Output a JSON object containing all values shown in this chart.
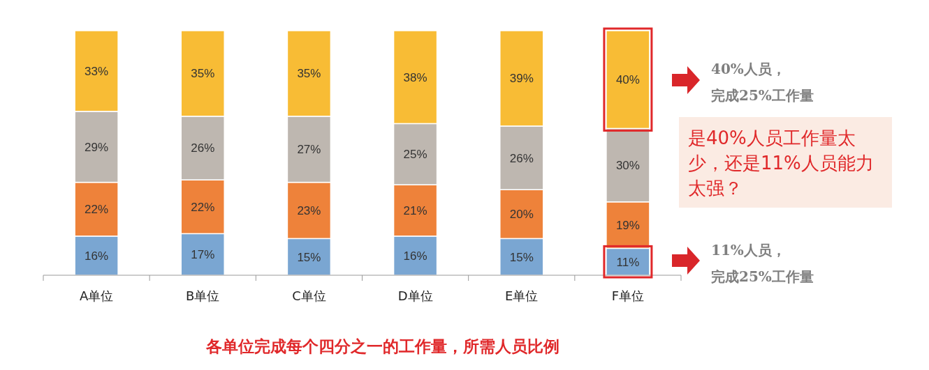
{
  "chart_data": {
    "type": "bar",
    "stacked": true,
    "title": "各单位完成每个四分之一的工作量，所需人员比例",
    "categories": [
      "A单位",
      "B单位",
      "C单位",
      "D单位",
      "E单位",
      "F单位"
    ],
    "series": [
      {
        "color": "#7aa6d2",
        "values": [
          16,
          17,
          15,
          16,
          15,
          11
        ],
        "value_labels": [
          "16%",
          "17%",
          "15%",
          "16%",
          "15%",
          "11%"
        ]
      },
      {
        "color": "#ee823a",
        "values": [
          22,
          22,
          23,
          21,
          20,
          19
        ],
        "value_labels": [
          "22%",
          "22%",
          "23%",
          "21%",
          "20%",
          "19%"
        ]
      },
      {
        "color": "#beb7b0",
        "values": [
          29,
          26,
          27,
          25,
          26,
          30
        ],
        "value_labels": [
          "29%",
          "26%",
          "27%",
          "25%",
          "26%",
          "30%"
        ]
      },
      {
        "color": "#f8bc35",
        "values": [
          33,
          35,
          35,
          38,
          39,
          40
        ],
        "value_labels": [
          "33%",
          "35%",
          "35%",
          "38%",
          "39%",
          "40%"
        ]
      }
    ],
    "annotations": [
      "40%人员，完成25%工作量",
      "是40%人员工作量太少，还是11%人员能力太强？",
      "11%人员，完成25%工作量"
    ]
  }
}
